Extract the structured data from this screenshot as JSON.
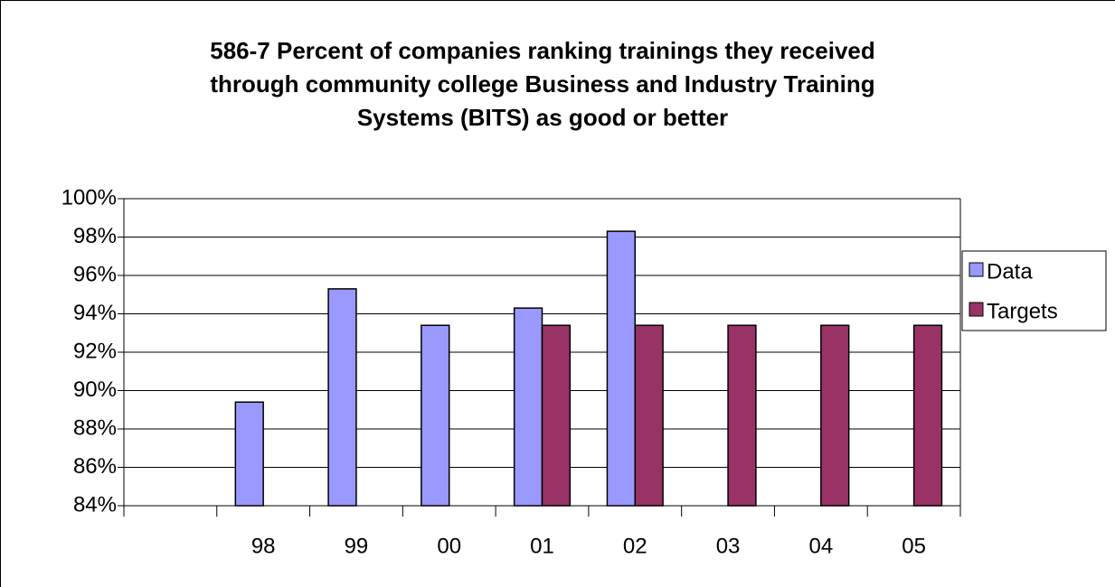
{
  "chart_data": {
    "type": "bar",
    "title": [
      "586-7 Percent of companies ranking trainings they received",
      "through community college Business and Industry Training",
      "Systems (BITS) as good or better"
    ],
    "categories": [
      null,
      "98",
      "99",
      "00",
      "01",
      "02",
      "03",
      "04",
      "05"
    ],
    "series": [
      {
        "name": "Data",
        "color": "#9999ff",
        "values": [
          null,
          89.4,
          95.3,
          93.4,
          94.3,
          98.3,
          null,
          null,
          null
        ]
      },
      {
        "name": "Targets",
        "color": "#993366",
        "values": [
          null,
          null,
          null,
          null,
          93.4,
          93.4,
          93.4,
          93.4,
          93.4
        ]
      }
    ],
    "ylim": [
      84,
      100
    ],
    "yticks": [
      {
        "value": 84,
        "label": "84%"
      },
      {
        "value": 86,
        "label": "86%"
      },
      {
        "value": 88,
        "label": "88%"
      },
      {
        "value": 90,
        "label": "90%"
      },
      {
        "value": 92,
        "label": "92%"
      },
      {
        "value": 94,
        "label": "94%"
      },
      {
        "value": 96,
        "label": "96%"
      },
      {
        "value": 98,
        "label": "98%"
      },
      {
        "value": 100,
        "label": "100%"
      }
    ],
    "grid": true,
    "legend": "right"
  }
}
